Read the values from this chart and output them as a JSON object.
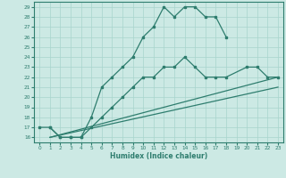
{
  "title": "",
  "xlabel": "Humidex (Indice chaleur)",
  "xlim": [
    -0.5,
    23.5
  ],
  "ylim": [
    15.5,
    29.5
  ],
  "yticks": [
    16,
    17,
    18,
    19,
    20,
    21,
    22,
    23,
    24,
    25,
    26,
    27,
    28,
    29
  ],
  "xticks": [
    0,
    1,
    2,
    3,
    4,
    5,
    6,
    7,
    8,
    9,
    10,
    11,
    12,
    13,
    14,
    15,
    16,
    17,
    18,
    19,
    20,
    21,
    22,
    23
  ],
  "line_color": "#2e7d6e",
  "bg_color": "#cce9e4",
  "grid_color": "#a8d4cc",
  "line1_x": [
    0,
    1,
    2,
    3,
    4,
    5,
    6,
    7,
    8,
    9,
    10,
    11,
    12,
    13,
    14,
    15,
    16,
    17,
    18
  ],
  "line1_y": [
    17,
    17,
    16,
    16,
    16,
    18,
    21,
    22,
    23,
    24,
    26,
    27,
    29,
    28,
    29,
    29,
    28,
    28,
    26
  ],
  "line2_x": [
    1,
    2,
    3,
    4,
    5,
    6,
    7,
    8,
    9,
    10,
    11,
    12,
    13,
    14,
    15,
    16,
    17,
    18,
    20,
    21,
    22,
    23
  ],
  "line2_y": [
    17,
    16,
    16,
    16,
    17,
    18,
    19,
    20,
    21,
    22,
    22,
    23,
    23,
    24,
    23,
    22,
    22,
    22,
    23,
    23,
    22,
    22
  ],
  "line3_x": [
    1,
    23
  ],
  "line3_y": [
    16,
    22
  ],
  "line4_x": [
    1,
    23
  ],
  "line4_y": [
    16,
    21
  ]
}
